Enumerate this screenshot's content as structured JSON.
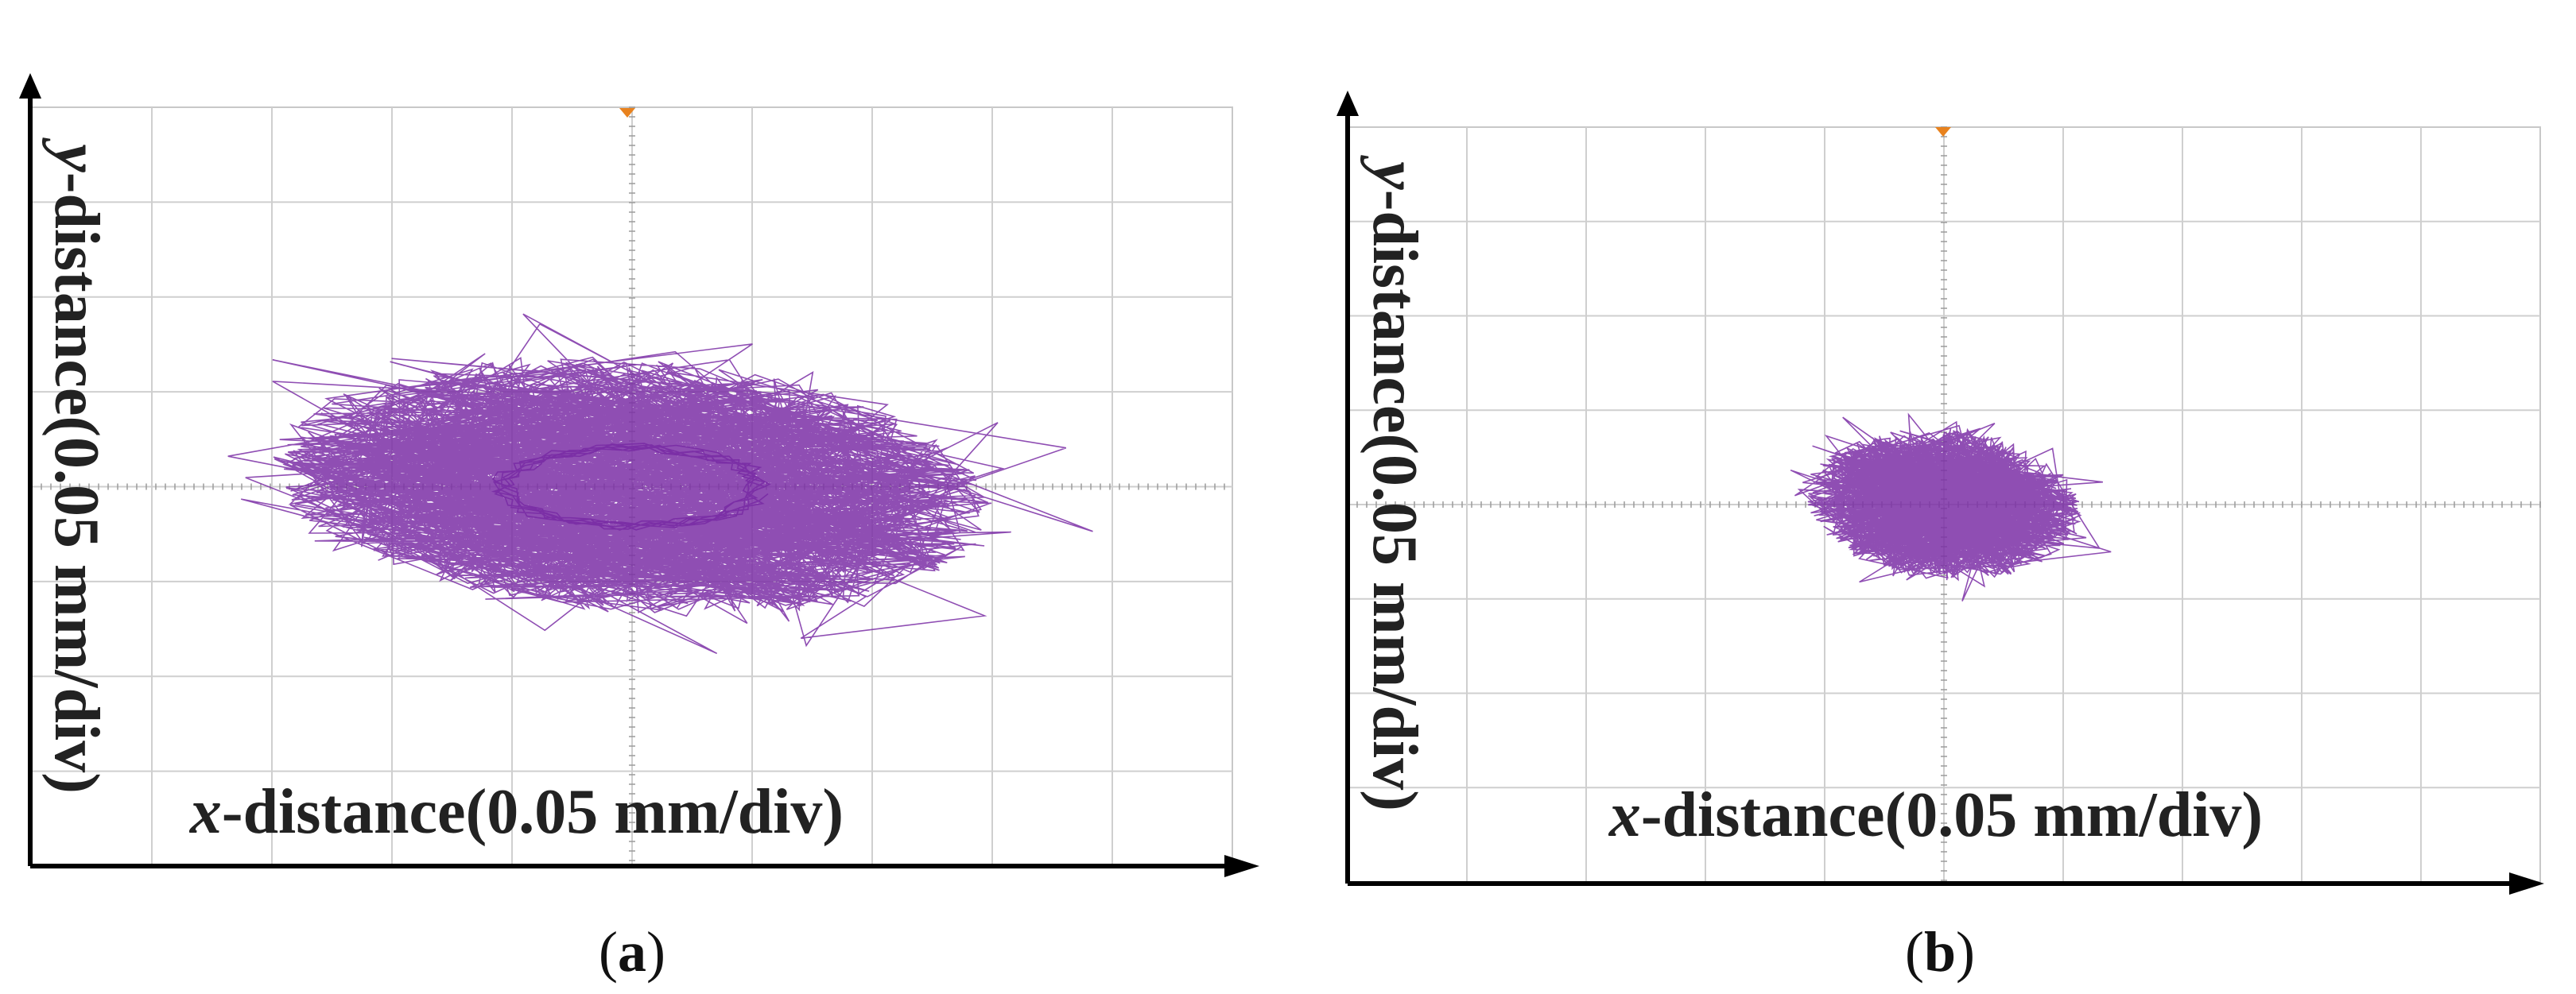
{
  "chart_data": [
    {
      "type": "scatter",
      "panel_label": "a",
      "xlabel_var": "x",
      "xlabel_text": "-distance(0.05 mm/div)",
      "ylabel_var": "y",
      "ylabel_text": "-distance(0.05 mm/div)",
      "x_divisions": 10,
      "y_divisions": 8,
      "xlim": [
        -5,
        5
      ],
      "ylim": [
        -4,
        4
      ],
      "grid": true,
      "trace_color": "#7b2fa6",
      "trigger_color": "#e8821e",
      "orbit": {
        "center": [
          0,
          0
        ],
        "x_amplitude": 3.0,
        "y_amplitude": 1.35,
        "inner_x": 0.9,
        "inner_y": 0.25,
        "seed": 7,
        "points": 1400
      }
    },
    {
      "type": "scatter",
      "panel_label": "b",
      "xlabel_var": "x",
      "xlabel_text": "-distance(0.05 mm/div)",
      "ylabel_var": "y",
      "ylabel_text": "-distance(0.05 mm/div)",
      "x_divisions": 10,
      "y_divisions": 8,
      "xlim": [
        -5,
        5
      ],
      "ylim": [
        -4,
        4
      ],
      "grid": true,
      "trace_color": "#7b2fa6",
      "trigger_color": "#e8821e",
      "orbit": {
        "center": [
          0,
          0
        ],
        "x_amplitude": 1.15,
        "y_amplitude": 0.8,
        "inner_x": 0.0,
        "inner_y": 0.0,
        "seed": 13,
        "points": 1400
      }
    }
  ]
}
